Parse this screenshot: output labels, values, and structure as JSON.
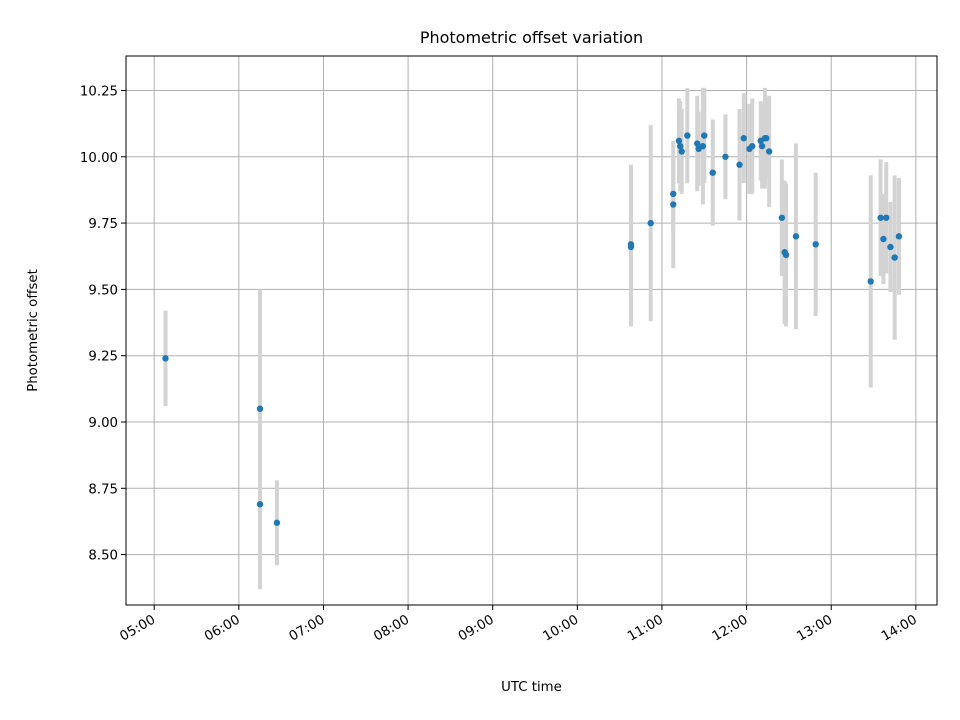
{
  "chart_data": {
    "type": "scatter",
    "title": "Photometric offset variation",
    "xlabel": "UTC time",
    "ylabel": "Photometric offset",
    "x_is_time": true,
    "xlim": [
      "04:40",
      "14:15"
    ],
    "ylim": [
      8.31,
      10.38
    ],
    "grid": true,
    "legend": "none",
    "colors": {
      "point": "#1f77b4",
      "errorbar": "#d3d3d3",
      "grid": "#b0b0b0"
    },
    "x_ticks": [
      "05:00",
      "06:00",
      "07:00",
      "08:00",
      "09:00",
      "10:00",
      "11:00",
      "12:00",
      "13:00",
      "14:00"
    ],
    "y_ticks": [
      "8.50",
      "8.75",
      "9.00",
      "9.25",
      "9.50",
      "9.75",
      "10.00",
      "10.25"
    ],
    "points": [
      {
        "t": "05:08",
        "y": 9.24,
        "err": 0.18
      },
      {
        "t": "06:15",
        "y": 9.05,
        "err": 0.45
      },
      {
        "t": "06:15",
        "y": 8.69,
        "err": 0.32
      },
      {
        "t": "06:27",
        "y": 8.62,
        "err": 0.16
      },
      {
        "t": "10:38",
        "y": 9.67,
        "err": 0.3
      },
      {
        "t": "10:38",
        "y": 9.66,
        "err": 0.3
      },
      {
        "t": "10:52",
        "y": 9.75,
        "err": 0.37
      },
      {
        "t": "11:08",
        "y": 9.86,
        "err": 0.14
      },
      {
        "t": "11:08",
        "y": 9.82,
        "err": 0.24
      },
      {
        "t": "11:12",
        "y": 10.06,
        "err": 0.16
      },
      {
        "t": "11:13",
        "y": 10.04,
        "err": 0.17
      },
      {
        "t": "11:14",
        "y": 10.02,
        "err": 0.16
      },
      {
        "t": "11:18",
        "y": 10.08,
        "err": 0.18
      },
      {
        "t": "11:25",
        "y": 10.05,
        "err": 0.18
      },
      {
        "t": "11:26",
        "y": 10.03,
        "err": 0.14
      },
      {
        "t": "11:29",
        "y": 10.04,
        "err": 0.22
      },
      {
        "t": "11:30",
        "y": 10.08,
        "err": 0.18
      },
      {
        "t": "11:36",
        "y": 9.94,
        "err": 0.2
      },
      {
        "t": "11:45",
        "y": 10.0,
        "err": 0.16
      },
      {
        "t": "11:55",
        "y": 9.97,
        "err": 0.21
      },
      {
        "t": "11:58",
        "y": 10.07,
        "err": 0.17
      },
      {
        "t": "12:02",
        "y": 10.03,
        "err": 0.17
      },
      {
        "t": "12:04",
        "y": 10.04,
        "err": 0.18
      },
      {
        "t": "12:10",
        "y": 10.06,
        "err": 0.15
      },
      {
        "t": "12:11",
        "y": 10.04,
        "err": 0.16
      },
      {
        "t": "12:13",
        "y": 10.07,
        "err": 0.19
      },
      {
        "t": "12:14",
        "y": 10.07,
        "err": 0.15
      },
      {
        "t": "12:16",
        "y": 10.02,
        "err": 0.21
      },
      {
        "t": "12:25",
        "y": 9.77,
        "err": 0.22
      },
      {
        "t": "12:27",
        "y": 9.64,
        "err": 0.27
      },
      {
        "t": "12:28",
        "y": 9.63,
        "err": 0.27
      },
      {
        "t": "12:35",
        "y": 9.7,
        "err": 0.35
      },
      {
        "t": "12:49",
        "y": 9.67,
        "err": 0.27
      },
      {
        "t": "13:28",
        "y": 9.53,
        "err": 0.4
      },
      {
        "t": "13:35",
        "y": 9.77,
        "err": 0.22
      },
      {
        "t": "13:37",
        "y": 9.69,
        "err": 0.17
      },
      {
        "t": "13:39",
        "y": 9.77,
        "err": 0.21
      },
      {
        "t": "13:42",
        "y": 9.66,
        "err": 0.17
      },
      {
        "t": "13:45",
        "y": 9.62,
        "err": 0.31
      },
      {
        "t": "13:48",
        "y": 9.7,
        "err": 0.22
      }
    ]
  }
}
